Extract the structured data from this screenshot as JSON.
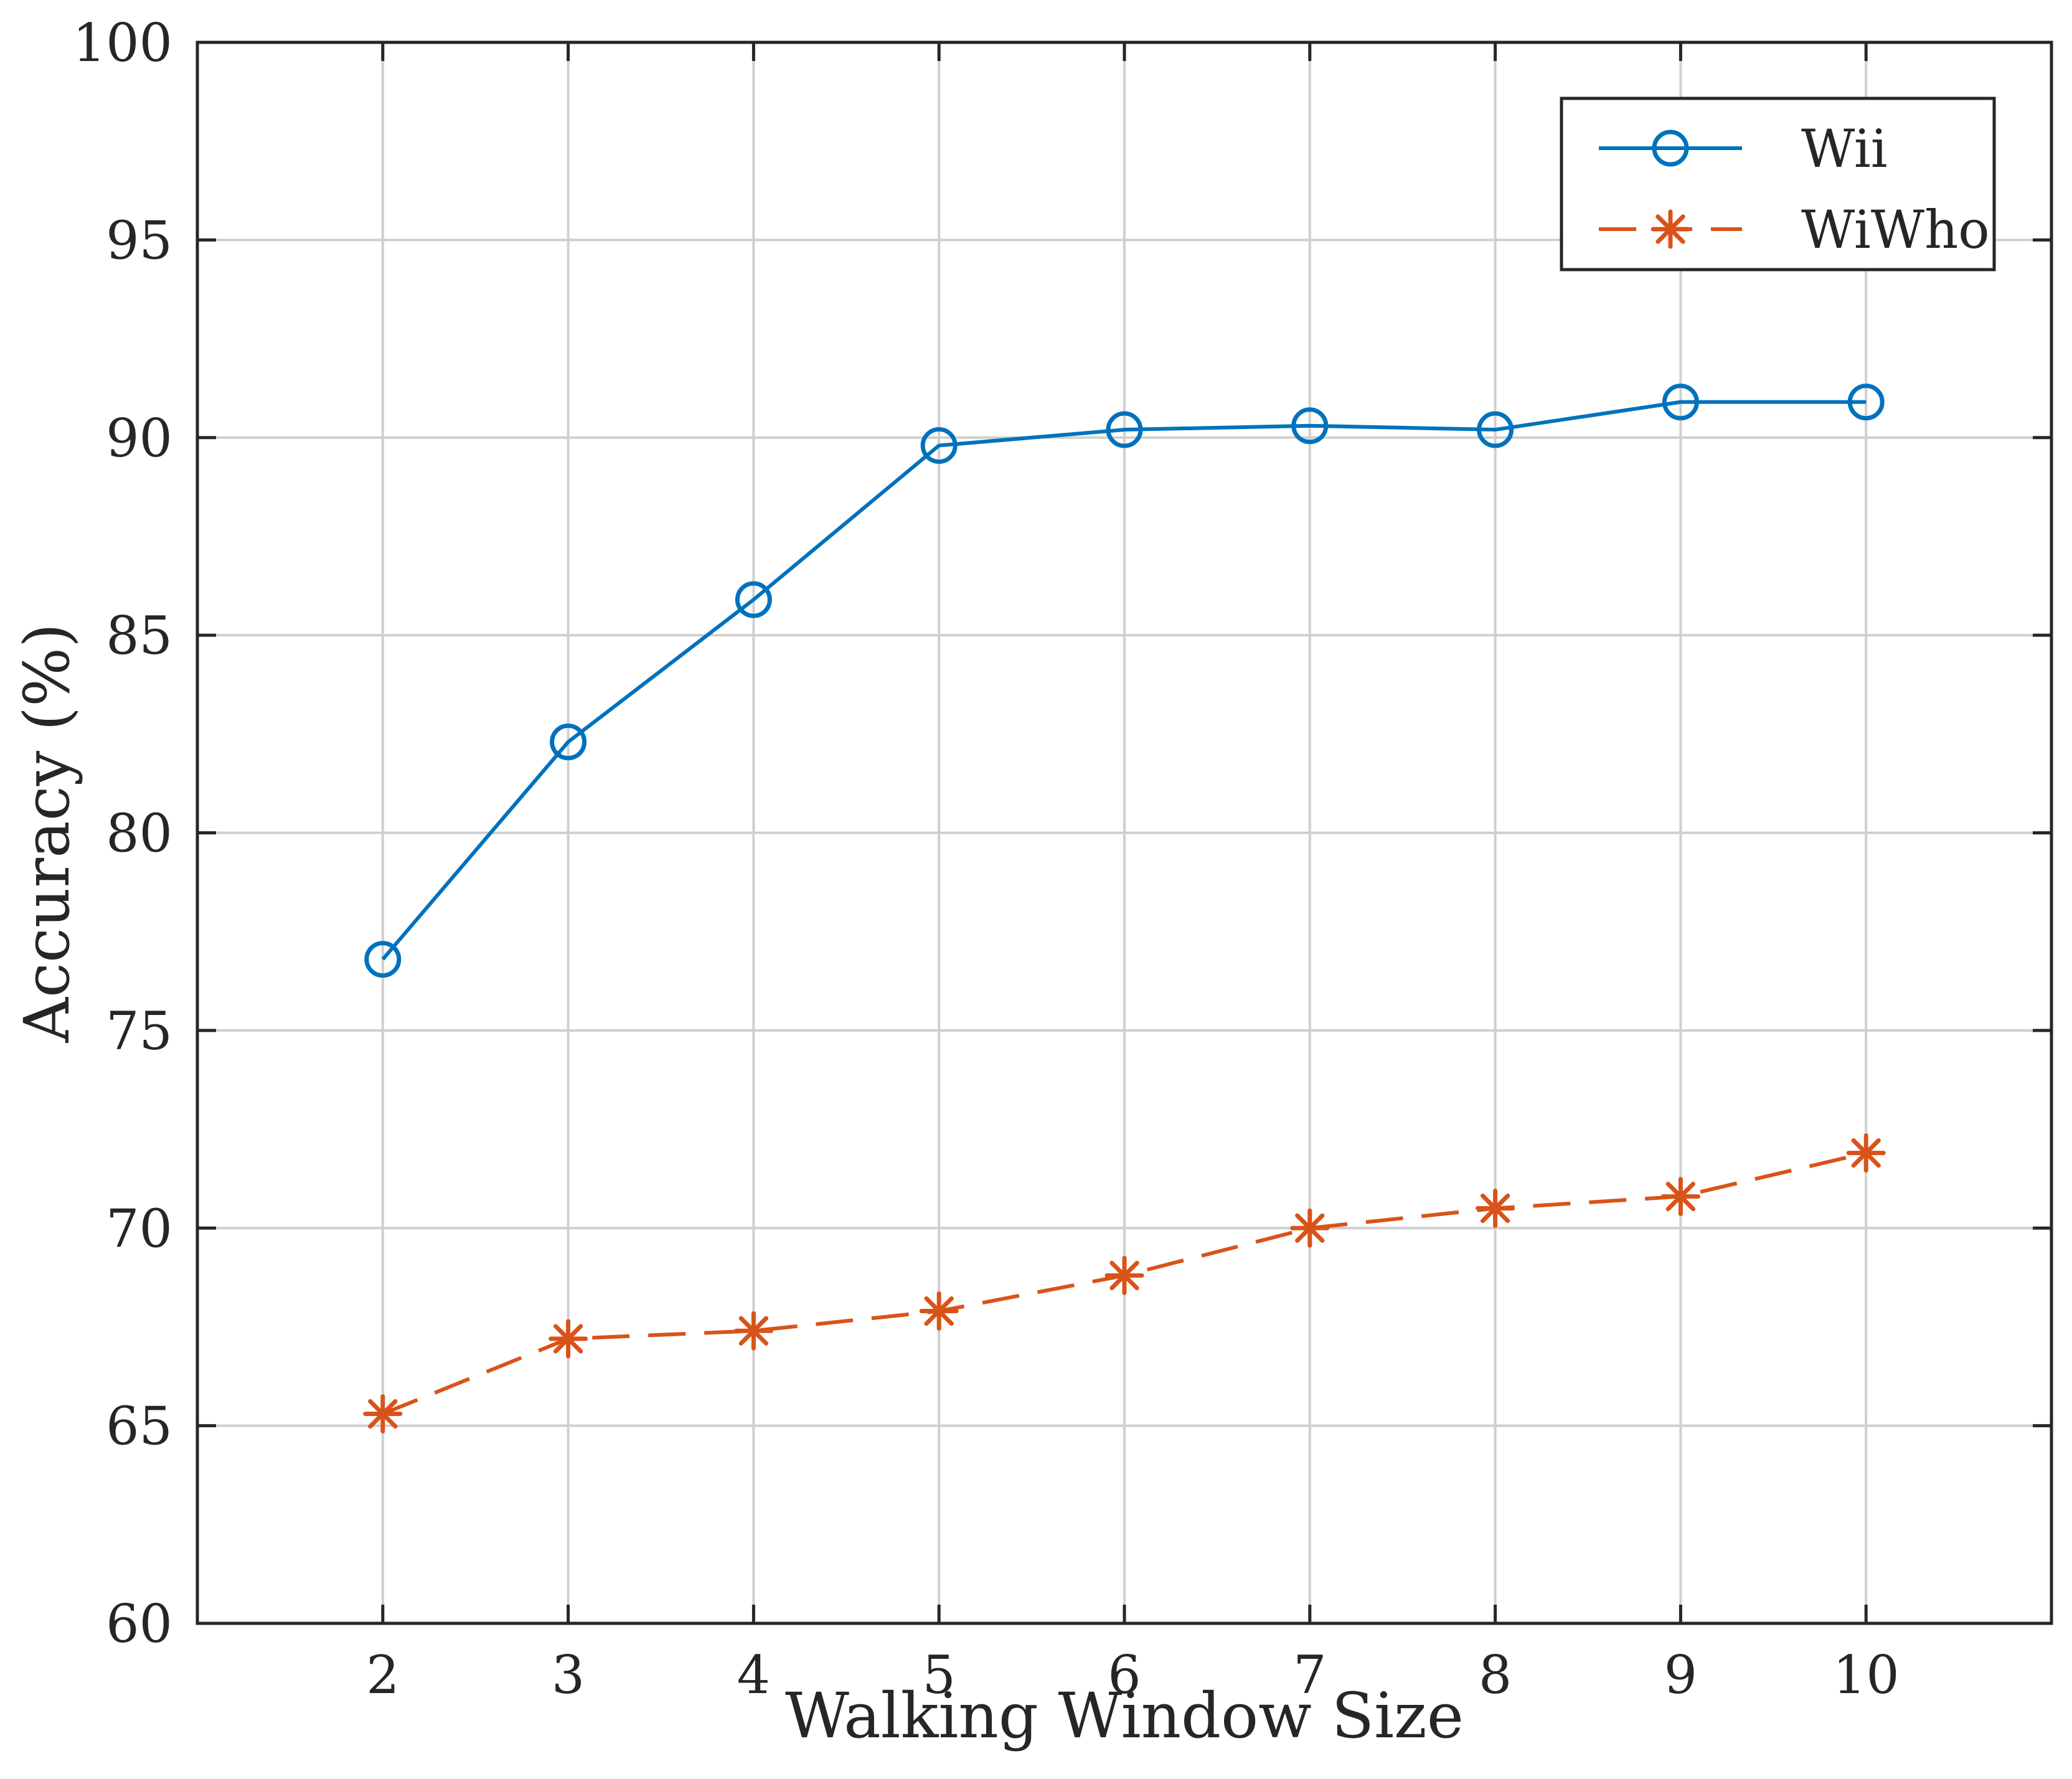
{
  "chart_data": {
    "type": "line",
    "title": "",
    "xlabel": "Walking Window Size",
    "ylabel": "Accuracy (%)",
    "xlim": [
      1,
      11
    ],
    "ylim": [
      60,
      100
    ],
    "grid": true,
    "legend_position": "top-right",
    "x_ticks": [
      2,
      3,
      4,
      5,
      6,
      7,
      8,
      9,
      10
    ],
    "y_ticks": [
      60,
      65,
      70,
      75,
      80,
      85,
      90,
      95,
      100
    ],
    "x": [
      2,
      3,
      4,
      5,
      6,
      7,
      8,
      9,
      10
    ],
    "series": [
      {
        "name": "Wii",
        "marker": "circle",
        "line_style": "solid",
        "color": "#0072BD",
        "values": [
          76.8,
          82.3,
          85.9,
          89.8,
          90.2,
          90.3,
          90.2,
          90.9,
          90.9
        ]
      },
      {
        "name": "WiWho",
        "marker": "asterisk",
        "line_style": "dashed",
        "color": "#D95319",
        "values": [
          65.3,
          67.2,
          67.4,
          67.9,
          68.8,
          70.0,
          70.5,
          70.8,
          71.9
        ]
      }
    ]
  }
}
